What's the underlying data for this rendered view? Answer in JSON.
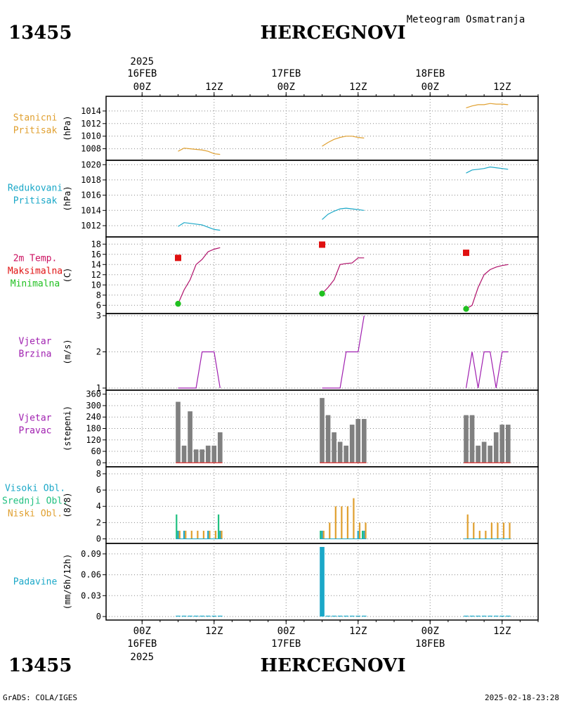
{
  "header": {
    "station_id": "13455",
    "station_name": "HERCEGNOVI",
    "subtitle": "Meteogram Osmatranja"
  },
  "footer": {
    "credit": "GrADS: COLA/IGES",
    "timestamp": "2025-02-18-23:28"
  },
  "time_axis": {
    "year": "2025",
    "days": [
      "16FEB",
      "17FEB",
      "18FEB"
    ],
    "hour_labels": [
      "00Z",
      "12Z"
    ],
    "range_hours": [
      -6,
      66
    ],
    "major_ticks_hours": [
      0,
      12,
      24,
      36,
      48,
      60
    ]
  },
  "chart_data": [
    {
      "id": "stanicni",
      "type": "line",
      "labels": [
        "Stanicni",
        "Pritisak"
      ],
      "label_colors": [
        "#e0a030",
        "#e0a030"
      ],
      "ylabel": "(hPa)",
      "ylim": [
        1006.5,
        1016
      ],
      "yticks": [
        1008,
        1010,
        1012,
        1014
      ],
      "series": [
        {
          "color": "#e0a030",
          "x": [
            6,
            7,
            8,
            9,
            10,
            11,
            12,
            13
          ],
          "y": [
            1007.6,
            1008.1,
            1008.0,
            1007.9,
            1007.8,
            1007.6,
            1007.2,
            1007.1
          ]
        },
        {
          "color": "#e0a030",
          "x": [
            30,
            31,
            32,
            33,
            34,
            35,
            36,
            37
          ],
          "y": [
            1008.4,
            1009.0,
            1009.5,
            1009.8,
            1010.0,
            1010.0,
            1009.8,
            1009.7
          ]
        },
        {
          "color": "#e0a030",
          "x": [
            54,
            55,
            56,
            57,
            58,
            59,
            60,
            61
          ],
          "y": [
            1014.5,
            1014.8,
            1015.0,
            1015.0,
            1015.2,
            1015.1,
            1015.1,
            1015.0
          ]
        }
      ]
    },
    {
      "id": "redukovani",
      "type": "line",
      "labels": [
        "Redukovani",
        "Pritisak"
      ],
      "label_colors": [
        "#1ba8c8",
        "#1ba8c8"
      ],
      "ylabel": "(hPa)",
      "ylim": [
        1010.8,
        1020.3
      ],
      "yticks": [
        1012,
        1014,
        1016,
        1018,
        1020
      ],
      "series": [
        {
          "color": "#1ba8c8",
          "x": [
            6,
            7,
            8,
            9,
            10,
            11,
            12,
            13
          ],
          "y": [
            1011.9,
            1012.4,
            1012.3,
            1012.2,
            1012.1,
            1011.8,
            1011.5,
            1011.4
          ]
        },
        {
          "color": "#1ba8c8",
          "x": [
            30,
            31,
            32,
            33,
            34,
            35,
            36,
            37
          ],
          "y": [
            1012.8,
            1013.5,
            1013.9,
            1014.2,
            1014.3,
            1014.2,
            1014.1,
            1014.0
          ]
        },
        {
          "color": "#1ba8c8",
          "x": [
            54,
            55,
            56,
            57,
            58,
            59,
            60,
            61
          ],
          "y": [
            1018.9,
            1019.3,
            1019.4,
            1019.5,
            1019.7,
            1019.6,
            1019.5,
            1019.4
          ]
        }
      ]
    },
    {
      "id": "temperatura",
      "type": "line",
      "labels": [
        "2m Temp.",
        "Maksimalna",
        "Minimalna"
      ],
      "label_colors": [
        "#cc1060",
        "#e01010",
        "#20c020"
      ],
      "ylabel": "(C)",
      "ylim": [
        4.8,
        19
      ],
      "yticks": [
        6,
        8,
        10,
        12,
        14,
        16,
        18
      ],
      "series": [
        {
          "color": "#b0106a",
          "x": [
            6,
            7,
            8,
            9,
            10,
            11,
            12,
            13
          ],
          "y": [
            6.3,
            9.0,
            11.0,
            14.0,
            15.0,
            16.5,
            17.0,
            17.3
          ]
        },
        {
          "color": "#b0106a",
          "x": [
            30,
            31,
            32,
            33,
            34,
            35,
            36,
            37
          ],
          "y": [
            8.3,
            9.5,
            11.0,
            14.0,
            14.2,
            14.3,
            15.3,
            15.3
          ]
        },
        {
          "color": "#b0106a",
          "x": [
            54,
            55,
            56,
            57,
            58,
            59,
            60,
            61
          ],
          "y": [
            5.3,
            6.0,
            9.5,
            12.0,
            13.0,
            13.5,
            13.8,
            14.0
          ]
        }
      ],
      "max_markers": {
        "color": "#e01010",
        "x": [
          6,
          30,
          54
        ],
        "y": [
          15.3,
          17.9,
          16.3
        ]
      },
      "min_markers": {
        "color": "#20c020",
        "x": [
          6,
          30,
          54
        ],
        "y": [
          6.3,
          8.3,
          5.3
        ]
      }
    },
    {
      "id": "brzina",
      "type": "line",
      "labels": [
        "Vjetar",
        "Brzina"
      ],
      "label_colors": [
        "#a020b0",
        "#a020b0"
      ],
      "ylabel": "(m/s)",
      "ylim": [
        1,
        3
      ],
      "yticks": [
        1,
        2,
        3
      ],
      "series": [
        {
          "color": "#a020b0",
          "x": [
            6,
            7,
            8,
            9,
            10,
            11,
            12,
            13
          ],
          "y": [
            1,
            1,
            1,
            1,
            2,
            2,
            2,
            1
          ]
        },
        {
          "color": "#a020b0",
          "x": [
            30,
            31,
            32,
            33,
            34,
            35,
            36,
            37
          ],
          "y": [
            1,
            1,
            1,
            1,
            2,
            2,
            2,
            3
          ]
        },
        {
          "color": "#a020b0",
          "x": [
            54,
            55,
            56,
            57,
            58,
            59,
            60,
            61
          ],
          "y": [
            1,
            2,
            1,
            2,
            2,
            1,
            2,
            2
          ]
        }
      ]
    },
    {
      "id": "pravac",
      "type": "bar",
      "labels": [
        "Vjetar",
        "Pravac"
      ],
      "label_colors": [
        "#a020b0",
        "#a020b0"
      ],
      "ylabel": "(stepeni)",
      "ylim": [
        -10,
        370
      ],
      "yticks": [
        0,
        60,
        120,
        180,
        240,
        300,
        360
      ],
      "bar_color": "#808080",
      "base_color": "#e04040",
      "x": [
        6,
        7,
        8,
        9,
        10,
        11,
        12,
        13,
        30,
        31,
        32,
        33,
        34,
        35,
        36,
        37,
        54,
        55,
        56,
        57,
        58,
        59,
        60,
        61
      ],
      "values": [
        320,
        90,
        270,
        70,
        70,
        90,
        90,
        160,
        340,
        250,
        160,
        110,
        90,
        200,
        230,
        230,
        250,
        250,
        90,
        110,
        90,
        160,
        200,
        200
      ]
    },
    {
      "id": "oblaci",
      "type": "bar",
      "labels": [
        "Visoki Obl.",
        "Srednji Obl.",
        "Niski Obl."
      ],
      "label_colors": [
        "#1ba8c8",
        "#20c080",
        "#e0a030"
      ],
      "ylabel": "(8/8)",
      "ylim": [
        -0.3,
        8.6
      ],
      "yticks": [
        0,
        2,
        4,
        6,
        8
      ],
      "series": [
        {
          "name": "visoki",
          "color": "#1ba8c8",
          "x": [
            6,
            7,
            8,
            9,
            10,
            11,
            12,
            13,
            30,
            31,
            32,
            33,
            34,
            35,
            36,
            37,
            54,
            55,
            56,
            57,
            58,
            59,
            60,
            61
          ],
          "values": [
            1,
            1,
            0,
            0,
            0,
            1,
            0,
            1,
            1,
            0,
            0,
            0,
            0,
            0,
            1,
            1,
            0,
            0,
            0,
            0,
            0,
            0,
            0,
            0
          ]
        },
        {
          "name": "srednji",
          "color": "#20c080",
          "x": [
            6,
            7,
            8,
            9,
            10,
            11,
            12,
            13,
            30,
            31,
            32,
            33,
            34,
            35,
            36,
            37,
            54,
            55,
            56,
            57,
            58,
            59,
            60,
            61
          ],
          "values": [
            3,
            0,
            0,
            0,
            0,
            0,
            0,
            3,
            1,
            0,
            0,
            0,
            0,
            0,
            0,
            1,
            0,
            0,
            0,
            0,
            0,
            0,
            0,
            0
          ]
        },
        {
          "name": "niski",
          "color": "#e0a030",
          "x": [
            6,
            7,
            8,
            9,
            10,
            11,
            12,
            13,
            30,
            31,
            32,
            33,
            34,
            35,
            36,
            37,
            54,
            55,
            56,
            57,
            58,
            59,
            60,
            61
          ],
          "values": [
            1,
            1,
            1,
            1,
            1,
            1,
            1,
            1,
            1,
            2,
            4,
            4,
            4,
            5,
            2,
            2,
            3,
            2,
            1,
            1,
            2,
            2,
            2,
            2
          ]
        }
      ]
    },
    {
      "id": "padavine",
      "type": "bar",
      "labels": [
        "Padavine"
      ],
      "label_colors": [
        "#1ba8c8"
      ],
      "ylabel": "(mm/6h/12h)",
      "ylim": [
        -0.002,
        0.102
      ],
      "yticks": [
        0,
        0.03,
        0.06,
        0.09
      ],
      "ytick_labels": [
        "0",
        "0.03",
        "0.06",
        "0.09"
      ],
      "bar_color": "#1ba8c8",
      "x": [
        6,
        7,
        8,
        9,
        10,
        11,
        12,
        13,
        30,
        31,
        32,
        33,
        34,
        35,
        36,
        37,
        54,
        55,
        56,
        57,
        58,
        59,
        60,
        61
      ],
      "values": [
        0,
        0,
        0,
        0,
        0,
        0,
        0,
        0,
        0.1,
        0,
        0,
        0,
        0,
        0,
        0,
        0,
        0,
        0,
        0,
        0,
        0,
        0,
        0,
        0
      ]
    }
  ]
}
